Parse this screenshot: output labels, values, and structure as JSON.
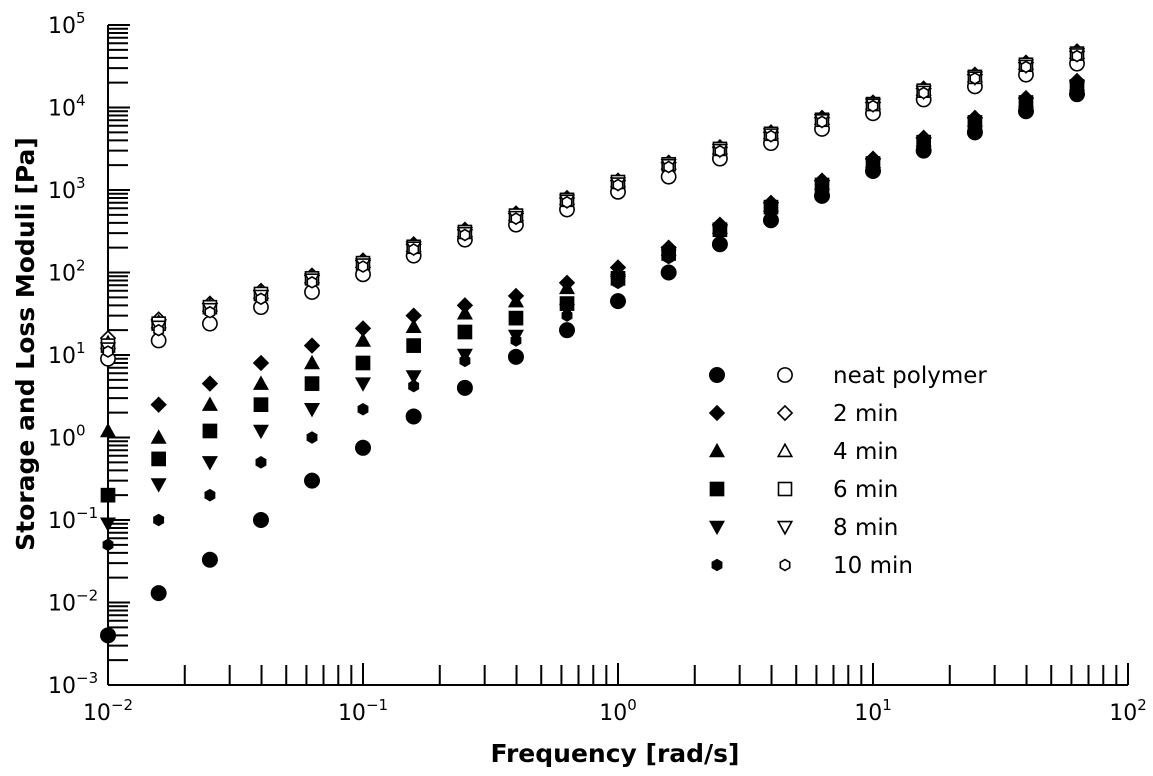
{
  "chart_data": {
    "type": "scatter",
    "title": "",
    "xlabel": "Frequency [rad/s]",
    "ylabel": "Storage and Loss Moduli [Pa]",
    "xscale": "log",
    "yscale": "log",
    "xlim": [
      0.01,
      100
    ],
    "ylim": [
      0.001,
      100000
    ],
    "x_tick_labels": [
      {
        "base": "10",
        "exp": "−2"
      },
      {
        "base": "10",
        "exp": "−1"
      },
      {
        "base": "10",
        "exp": "0"
      },
      {
        "base": "10",
        "exp": "1"
      },
      {
        "base": "10",
        "exp": "2"
      }
    ],
    "y_tick_labels": [
      {
        "base": "10",
        "exp": "−3"
      },
      {
        "base": "10",
        "exp": "−2"
      },
      {
        "base": "10",
        "exp": "−1"
      },
      {
        "base": "10",
        "exp": "0"
      },
      {
        "base": "10",
        "exp": "1"
      },
      {
        "base": "10",
        "exp": "2"
      },
      {
        "base": "10",
        "exp": "3"
      },
      {
        "base": "10",
        "exp": "4"
      },
      {
        "base": "10",
        "exp": "5"
      }
    ],
    "grid": false,
    "legend_position": "right-center",
    "x": [
      0.01,
      0.0158,
      0.0251,
      0.0398,
      0.0631,
      0.1,
      0.158,
      0.251,
      0.398,
      0.631,
      1.0,
      1.58,
      2.51,
      3.98,
      6.31,
      10.0,
      15.8,
      25.1,
      39.8,
      63.1
    ],
    "series": [
      {
        "name": "neat polymer",
        "marker": "circle",
        "modulus": "G′ (filled)",
        "values": [
          0.004,
          0.013,
          0.033,
          0.1,
          0.3,
          0.75,
          1.8,
          4.0,
          9.5,
          20,
          45,
          100,
          220,
          430,
          850,
          1700,
          3000,
          5000,
          9000,
          14500
        ]
      },
      {
        "name": "neat polymer",
        "marker": "circle",
        "modulus": "G″ (open)",
        "values": [
          9,
          15,
          24,
          38,
          58,
          95,
          160,
          250,
          380,
          580,
          950,
          1450,
          2400,
          3700,
          5500,
          8500,
          12500,
          18000,
          25000,
          34000
        ]
      },
      {
        "name": "2 min",
        "marker": "diamond",
        "modulus": "G′ (filled)",
        "values": [
          null,
          2.5,
          4.5,
          8,
          13,
          21,
          30,
          40,
          52,
          75,
          115,
          200,
          380,
          700,
          1300,
          2400,
          4300,
          7500,
          13000,
          21000
        ]
      },
      {
        "name": "2 min",
        "marker": "diamond",
        "modulus": "G″ (open)",
        "values": [
          16,
          27,
          42,
          60,
          92,
          140,
          220,
          330,
          520,
          800,
          1300,
          2150,
          3300,
          5000,
          7500,
          11500,
          17000,
          25000,
          35000,
          48000
        ]
      },
      {
        "name": "4 min",
        "marker": "triangle-up",
        "modulus": "G′ (filled)",
        "values": [
          1.2,
          1.0,
          2.5,
          4.5,
          8,
          15,
          22,
          32,
          45,
          65,
          105,
          190,
          350,
          650,
          1200,
          2200,
          4000,
          7000,
          12000,
          19000
        ]
      },
      {
        "name": "4 min",
        "marker": "triangle-up",
        "modulus": "G″ (open)",
        "values": [
          14,
          25,
          40,
          57,
          88,
          135,
          210,
          320,
          500,
          780,
          1280,
          2100,
          3200,
          4900,
          7300,
          11200,
          16500,
          24000,
          34000,
          46000
        ]
      },
      {
        "name": "6 min",
        "marker": "square",
        "modulus": "G′ (filled)",
        "values": [
          0.2,
          0.55,
          1.2,
          2.5,
          4.5,
          8,
          13,
          19,
          28,
          42,
          85,
          170,
          330,
          620,
          1150,
          2100,
          3800,
          6600,
          11500,
          18000
        ]
      },
      {
        "name": "6 min",
        "marker": "square",
        "modulus": "G″ (open)",
        "values": [
          13,
          24,
          38,
          55,
          85,
          130,
          205,
          310,
          490,
          760,
          1250,
          2050,
          3150,
          4800,
          7100,
          11000,
          16000,
          23500,
          33000,
          45000
        ]
      },
      {
        "name": "8 min",
        "marker": "triangle-down",
        "modulus": "G′ (filled)",
        "values": [
          0.09,
          0.27,
          0.5,
          1.2,
          2.2,
          4.5,
          5.5,
          10,
          17,
          35,
          80,
          160,
          310,
          600,
          1100,
          2000,
          3600,
          6300,
          11000,
          17000
        ]
      },
      {
        "name": "8 min",
        "marker": "triangle-down",
        "modulus": "G″ (open)",
        "values": [
          12,
          22,
          36,
          52,
          82,
          125,
          200,
          300,
          470,
          740,
          1200,
          2000,
          3050,
          4700,
          7000,
          10800,
          15500,
          23000,
          32000,
          44000
        ]
      },
      {
        "name": "10 min",
        "marker": "hexagon",
        "modulus": "G′ (filled)",
        "values": [
          0.05,
          0.1,
          0.2,
          0.5,
          1.0,
          2.2,
          4.2,
          8.5,
          15,
          30,
          75,
          150,
          300,
          580,
          1050,
          1900,
          3500,
          6100,
          10500,
          16500
        ]
      },
      {
        "name": "10 min",
        "marker": "hexagon",
        "modulus": "G″ (open)",
        "values": [
          11,
          20,
          33,
          48,
          76,
          118,
          190,
          285,
          450,
          710,
          1150,
          1900,
          2950,
          4500,
          6700,
          10400,
          15000,
          22500,
          31000,
          42000
        ]
      }
    ],
    "legend": [
      {
        "label": "neat polymer",
        "marker": "circle"
      },
      {
        "label": "2 min",
        "marker": "diamond"
      },
      {
        "label": "4 min",
        "marker": "triangle-up"
      },
      {
        "label": "6 min",
        "marker": "square"
      },
      {
        "label": "8 min",
        "marker": "triangle-down"
      },
      {
        "label": "10 min",
        "marker": "hexagon"
      }
    ],
    "colors": {
      "marker": "#000000",
      "background": "#ffffff"
    }
  }
}
